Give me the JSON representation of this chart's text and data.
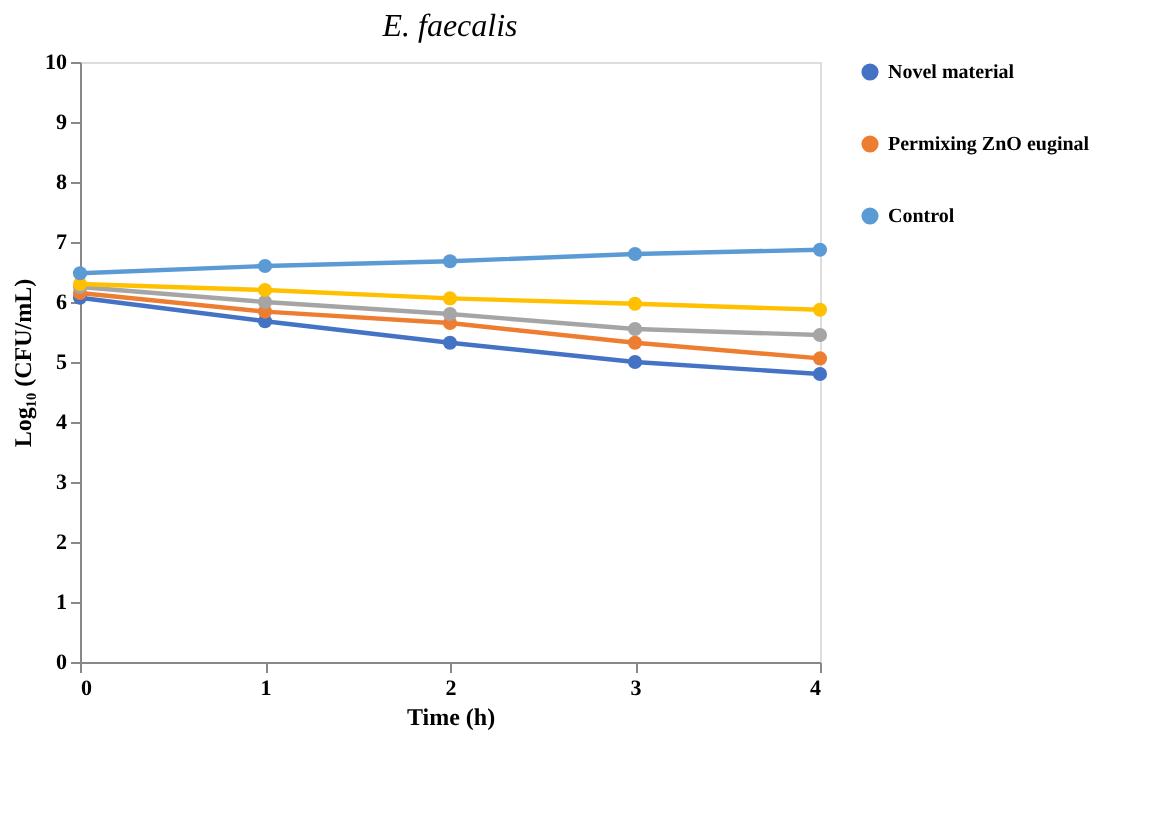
{
  "chart_data": {
    "type": "line",
    "title": "E. faecalis",
    "xlabel": "Time (h)",
    "ylabel": "Log₁₀ (CFU/mL)",
    "x": [
      0,
      1,
      2,
      3,
      4
    ],
    "xlim": [
      0,
      4
    ],
    "xticks": [
      0,
      1,
      2,
      3,
      4
    ],
    "ylim": [
      0,
      10
    ],
    "yticks": [
      0,
      1,
      2,
      3,
      4,
      5,
      6,
      7,
      8,
      9,
      10
    ],
    "series": [
      {
        "name": "Novel material",
        "color": "#4472c4",
        "values": [
          6.07,
          5.68,
          5.32,
          5.0,
          4.8
        ]
      },
      {
        "name": "Permixing ZnO euginal",
        "color": "#ed7d31",
        "values": [
          6.15,
          5.84,
          5.65,
          5.32,
          5.06
        ]
      },
      {
        "color": "#a5a5a5",
        "values": [
          6.25,
          6.0,
          5.8,
          5.55,
          5.45
        ]
      },
      {
        "color": "#ffc000",
        "values": [
          6.3,
          6.2,
          6.06,
          5.97,
          5.87
        ]
      },
      {
        "name": "Control",
        "color": "#5b9bd5",
        "values": [
          6.48,
          6.6,
          6.68,
          6.8,
          6.87
        ]
      }
    ],
    "marker": "circle",
    "line_style": "solid",
    "legend": "right",
    "grid": false
  }
}
